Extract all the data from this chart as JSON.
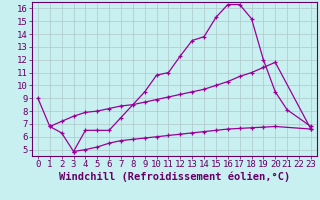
{
  "xlabel": "Windchill (Refroidissement éolien,°C)",
  "bg_color": "#c8f0f0",
  "grid_color": "#b0c8c8",
  "line_color": "#990099",
  "xlim": [
    -0.5,
    23.5
  ],
  "ylim": [
    4.5,
    16.5
  ],
  "xticks": [
    0,
    1,
    2,
    3,
    4,
    5,
    6,
    7,
    8,
    9,
    10,
    11,
    12,
    13,
    14,
    15,
    16,
    17,
    18,
    19,
    20,
    21,
    22,
    23
  ],
  "yticks": [
    5,
    6,
    7,
    8,
    9,
    10,
    11,
    12,
    13,
    14,
    15,
    16
  ],
  "font_family": "monospace",
  "tick_fontsize": 6.5,
  "xlabel_fontsize": 7.5,
  "line1_x": [
    0,
    1,
    2,
    3,
    4,
    5,
    6,
    7,
    9,
    10,
    11,
    12,
    13,
    14,
    15,
    16,
    17,
    18,
    19,
    20,
    21,
    23
  ],
  "line1_y": [
    9.0,
    6.8,
    6.3,
    4.85,
    6.5,
    6.5,
    6.5,
    7.5,
    9.5,
    10.8,
    11.0,
    12.3,
    13.5,
    13.8,
    15.3,
    16.3,
    16.3,
    15.2,
    12.0,
    9.5,
    8.1,
    6.8
  ],
  "line2_x": [
    1,
    2,
    3,
    4,
    5,
    6,
    7,
    8,
    9,
    10,
    11,
    12,
    13,
    14,
    15,
    16,
    17,
    18,
    19,
    20,
    23
  ],
  "line2_y": [
    6.8,
    7.2,
    7.6,
    7.9,
    8.0,
    8.2,
    8.4,
    8.5,
    8.7,
    8.9,
    9.1,
    9.3,
    9.5,
    9.7,
    10.0,
    10.3,
    10.7,
    11.0,
    11.4,
    11.8,
    6.6
  ],
  "line3_x": [
    3,
    4,
    5,
    6,
    7,
    8,
    9,
    10,
    11,
    12,
    13,
    14,
    15,
    16,
    17,
    18,
    19,
    20,
    23
  ],
  "line3_y": [
    4.85,
    5.0,
    5.2,
    5.5,
    5.7,
    5.8,
    5.9,
    6.0,
    6.1,
    6.2,
    6.3,
    6.4,
    6.5,
    6.6,
    6.65,
    6.7,
    6.75,
    6.8,
    6.6
  ]
}
